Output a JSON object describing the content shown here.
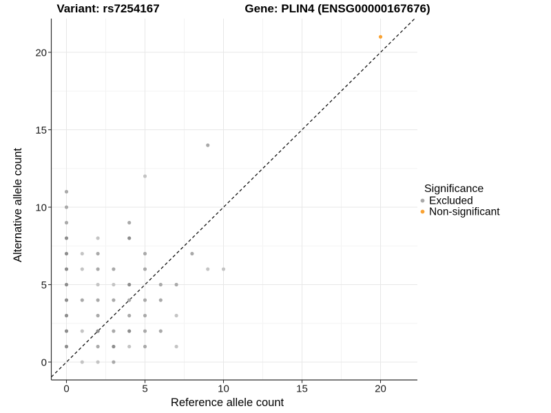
{
  "chart_data": {
    "type": "scatter",
    "title_left": "Variant: rs7254167",
    "title_right": "Gene: PLIN4 (ENSG00000167676)",
    "xlabel": "Reference allele count",
    "ylabel": "Alternative allele count",
    "x_ticks": [
      0,
      5,
      10,
      15,
      20
    ],
    "y_ticks": [
      0,
      5,
      10,
      15,
      20
    ],
    "xlim": [
      -1,
      22.3
    ],
    "ylim": [
      -1.2,
      22.2
    ],
    "grid": {
      "major": true,
      "minor": true
    },
    "identity_line": {
      "style": "dashed",
      "label": "y = x"
    },
    "shade_colors": {
      "l": "#C4C4C4",
      "m": "#A9A9A9",
      "d": "#8D8D8D"
    },
    "point_radius": 2.6,
    "series": [
      {
        "name": "Excluded",
        "color": "#A9A9A9",
        "points": [
          [
            9,
            14,
            "m"
          ],
          [
            5,
            12,
            "l"
          ],
          [
            0,
            11,
            "m"
          ],
          [
            0,
            10,
            "m"
          ],
          [
            0,
            9,
            "m"
          ],
          [
            4,
            9,
            "m"
          ],
          [
            0,
            8,
            "d"
          ],
          [
            2,
            8,
            "l"
          ],
          [
            4,
            8,
            "d"
          ],
          [
            0,
            7,
            "d"
          ],
          [
            1,
            7,
            "l"
          ],
          [
            2,
            7,
            "m"
          ],
          [
            5,
            7,
            "m"
          ],
          [
            8,
            7,
            "m"
          ],
          [
            0,
            6,
            "d"
          ],
          [
            1,
            6,
            "l"
          ],
          [
            2,
            6,
            "m"
          ],
          [
            3,
            6,
            "m"
          ],
          [
            5,
            6,
            "m"
          ],
          [
            9,
            6,
            "l"
          ],
          [
            10,
            6,
            "l"
          ],
          [
            0,
            5,
            "d"
          ],
          [
            2,
            5,
            "l"
          ],
          [
            3,
            5,
            "l"
          ],
          [
            4,
            5,
            "d"
          ],
          [
            6,
            5,
            "m"
          ],
          [
            7,
            5,
            "m"
          ],
          [
            0,
            4,
            "d"
          ],
          [
            1,
            4,
            "m"
          ],
          [
            2,
            4,
            "m"
          ],
          [
            3,
            4,
            "m"
          ],
          [
            4,
            4,
            "m"
          ],
          [
            5,
            4,
            "m"
          ],
          [
            6,
            4,
            "m"
          ],
          [
            0,
            3,
            "d"
          ],
          [
            2,
            3,
            "m"
          ],
          [
            4,
            3,
            "m"
          ],
          [
            5,
            3,
            "m"
          ],
          [
            7,
            3,
            "l"
          ],
          [
            0,
            2,
            "d"
          ],
          [
            1,
            2,
            "l"
          ],
          [
            2,
            2,
            "d"
          ],
          [
            3,
            2,
            "m"
          ],
          [
            4,
            2,
            "d"
          ],
          [
            5,
            2,
            "m"
          ],
          [
            6,
            2,
            "m"
          ],
          [
            0,
            1,
            "d"
          ],
          [
            2,
            1,
            "m"
          ],
          [
            3,
            1,
            "d"
          ],
          [
            4,
            1,
            "l"
          ],
          [
            5,
            1,
            "m"
          ],
          [
            7,
            1,
            "l"
          ],
          [
            1,
            0,
            "l"
          ],
          [
            2,
            0,
            "l"
          ],
          [
            3,
            0,
            "m"
          ]
        ]
      },
      {
        "name": "Non-significant",
        "color": "#F9A232",
        "points": [
          [
            20,
            21
          ]
        ]
      }
    ],
    "legend": {
      "title": "Significance",
      "position": "right",
      "entries": [
        {
          "label": "Excluded",
          "color": "#A9A9A9"
        },
        {
          "label": "Non-significant",
          "color": "#F9A232"
        }
      ]
    },
    "colors": {
      "grid_major": "#E7E7E7",
      "grid_minor": "#F3F3F3",
      "axis": "#2b2b2b",
      "dashed_line": "#111111",
      "background": "#FFFFFF"
    }
  }
}
